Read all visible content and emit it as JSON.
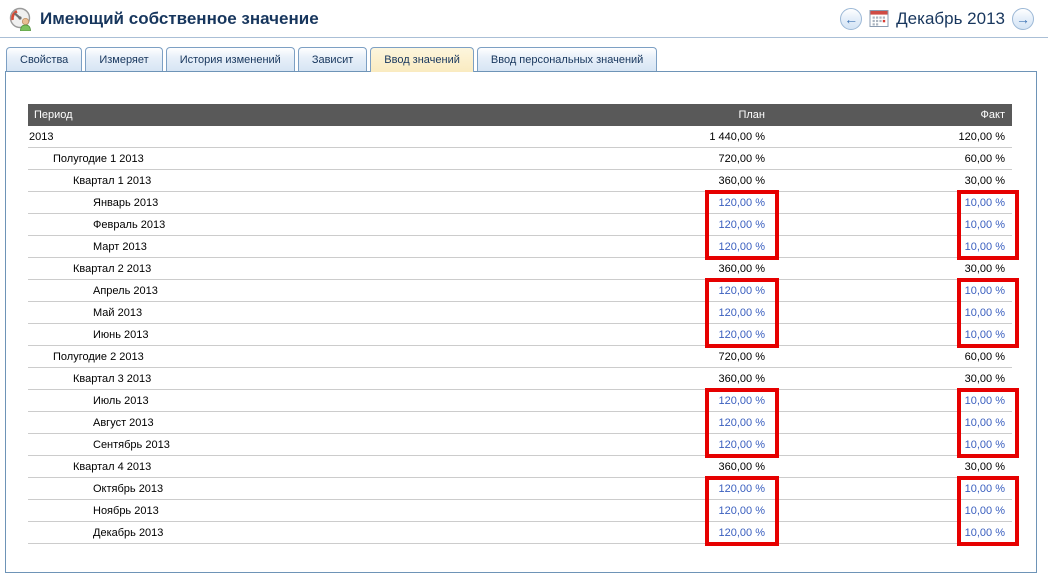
{
  "header": {
    "title": "Имеющий собственное значение",
    "icon": "gauge-user-icon",
    "period_nav": {
      "prev": "←",
      "next": "→",
      "current": "Декабрь 2013"
    }
  },
  "tabs": [
    {
      "label": "Свойства",
      "active": false
    },
    {
      "label": "Измеряет",
      "active": false
    },
    {
      "label": "История изменений",
      "active": false
    },
    {
      "label": "Зависит",
      "active": false
    },
    {
      "label": "Ввод значений",
      "active": true
    },
    {
      "label": "Ввод персональных значений",
      "active": false
    }
  ],
  "table": {
    "columns": [
      "Период",
      "План",
      "Факт"
    ],
    "rows": [
      {
        "period": "2013",
        "level": 0,
        "plan": "1 440,00 %",
        "fact": "120,00 %",
        "editable": false
      },
      {
        "period": "Полугодие 1 2013",
        "level": 1,
        "plan": "720,00 %",
        "fact": "60,00 %",
        "editable": false
      },
      {
        "period": "Квартал 1 2013",
        "level": 2,
        "plan": "360,00 %",
        "fact": "30,00 %",
        "editable": false
      },
      {
        "period": "Январь 2013",
        "level": 3,
        "plan": "120,00 %",
        "fact": "10,00 %",
        "editable": true
      },
      {
        "period": "Февраль 2013",
        "level": 3,
        "plan": "120,00 %",
        "fact": "10,00 %",
        "editable": true
      },
      {
        "period": "Март 2013",
        "level": 3,
        "plan": "120,00 %",
        "fact": "10,00 %",
        "editable": true
      },
      {
        "period": "Квартал 2 2013",
        "level": 2,
        "plan": "360,00 %",
        "fact": "30,00 %",
        "editable": false
      },
      {
        "period": "Апрель 2013",
        "level": 3,
        "plan": "120,00 %",
        "fact": "10,00 %",
        "editable": true
      },
      {
        "period": "Май 2013",
        "level": 3,
        "plan": "120,00 %",
        "fact": "10,00 %",
        "editable": true
      },
      {
        "period": "Июнь 2013",
        "level": 3,
        "plan": "120,00 %",
        "fact": "10,00 %",
        "editable": true
      },
      {
        "period": "Полугодие 2 2013",
        "level": 1,
        "plan": "720,00 %",
        "fact": "60,00 %",
        "editable": false
      },
      {
        "period": "Квартал 3 2013",
        "level": 2,
        "plan": "360,00 %",
        "fact": "30,00 %",
        "editable": false
      },
      {
        "period": "Июль 2013",
        "level": 3,
        "plan": "120,00 %",
        "fact": "10,00 %",
        "editable": true
      },
      {
        "period": "Август 2013",
        "level": 3,
        "plan": "120,00 %",
        "fact": "10,00 %",
        "editable": true
      },
      {
        "period": "Сентябрь 2013",
        "level": 3,
        "plan": "120,00 %",
        "fact": "10,00 %",
        "editable": true
      },
      {
        "period": "Квартал 4 2013",
        "level": 2,
        "plan": "360,00 %",
        "fact": "30,00 %",
        "editable": false
      },
      {
        "period": "Октябрь 2013",
        "level": 3,
        "plan": "120,00 %",
        "fact": "10,00 %",
        "editable": true
      },
      {
        "period": "Ноябрь 2013",
        "level": 3,
        "plan": "120,00 %",
        "fact": "10,00 %",
        "editable": true
      },
      {
        "period": "Декабрь 2013",
        "level": 3,
        "plan": "120,00 %",
        "fact": "10,00 %",
        "editable": true
      }
    ]
  },
  "annotations": {
    "highlight_color": "#e60000",
    "highlighted_groups": [
      "Квартал 1 месяцы",
      "Квартал 2 месяцы",
      "Квартал 3 месяцы",
      "Квартал 4 месяцы"
    ],
    "highlighted_columns": [
      "План",
      "Факт"
    ]
  },
  "colors": {
    "title": "#17365d",
    "table_header_bg": "#595959",
    "editable_value": "#3a5fbf",
    "panel_border": "#6e94b7",
    "active_tab_bg": "#fbefcb"
  }
}
